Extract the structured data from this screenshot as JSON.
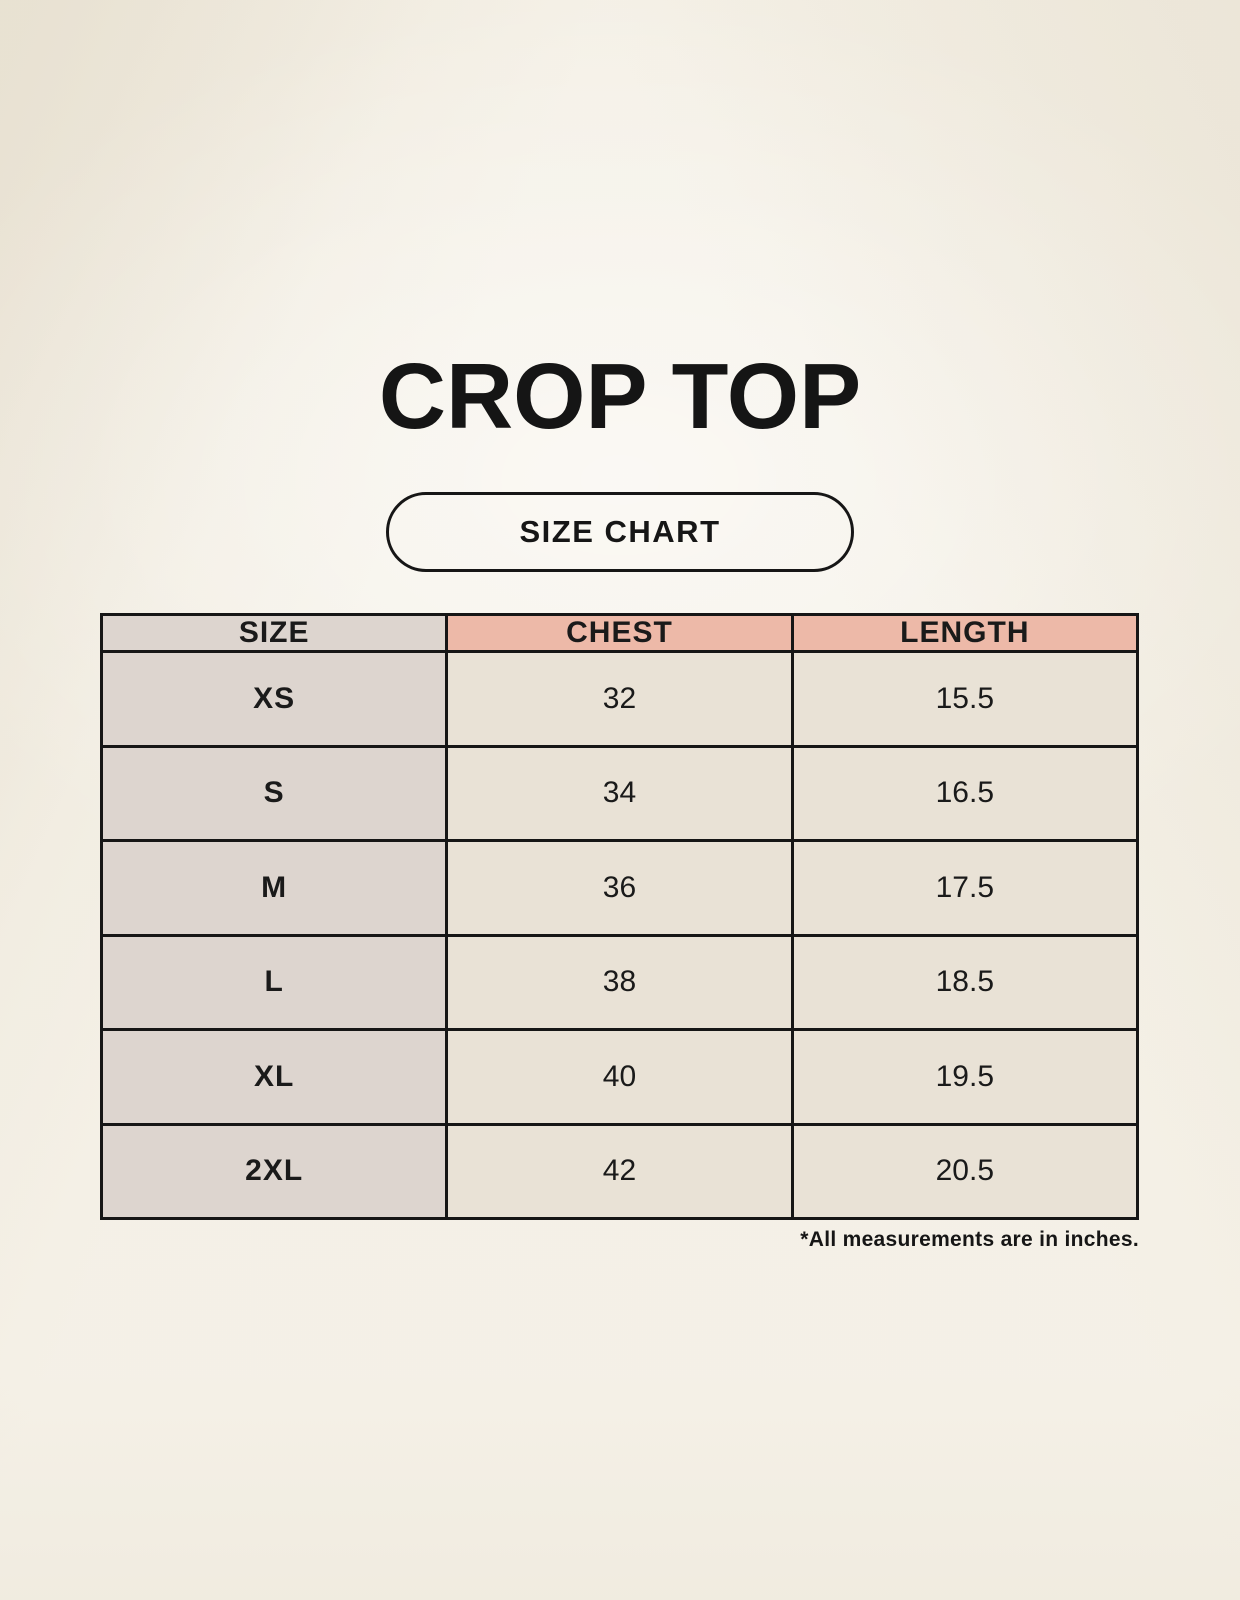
{
  "page": {
    "title": "CROP TOP",
    "size_chart_label": "SIZE CHART",
    "footnote": "*All measurements are in inches."
  },
  "colors": {
    "background": "#f7f4ec",
    "table_border": "#161616",
    "size_column_bg": "#ddd5cf",
    "measure_header_bg": "#edb9a8",
    "data_cell_bg": "#e9e2d6",
    "text": "#1a1a1a"
  },
  "chart_data": {
    "type": "table",
    "title": "CROP TOP",
    "subtitle": "SIZE CHART",
    "columns": [
      "SIZE",
      "CHEST",
      "LENGTH"
    ],
    "rows": [
      [
        "XS",
        "32",
        "15.5"
      ],
      [
        "S",
        "34",
        "16.5"
      ],
      [
        "M",
        "36",
        "17.5"
      ],
      [
        "L",
        "38",
        "18.5"
      ],
      [
        "XL",
        "40",
        "19.5"
      ],
      [
        "2XL",
        "42",
        "20.5"
      ]
    ],
    "units": "inches",
    "note": "*All measurements are in inches."
  }
}
